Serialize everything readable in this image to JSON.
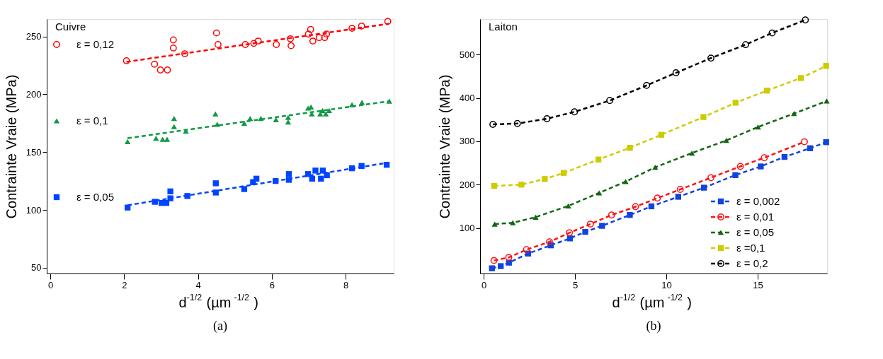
{
  "chart_data": [
    {
      "type": "scatter",
      "title": "Cuivre",
      "xlabel": "d$^{-1/2}$(µm$^{-1/2}$)",
      "ylabel": "Contrainte Vraie (MPa)",
      "xlim": [
        -0.1,
        9.3
      ],
      "ylim": [
        45,
        265
      ],
      "xticks": [
        0,
        2,
        4,
        6,
        8
      ],
      "yticks": [
        50,
        100,
        150,
        200,
        250
      ],
      "legend": "left",
      "annotations": [
        "(a)"
      ],
      "series": [
        {
          "name": "ε =  0,12",
          "marker": "circle",
          "color": "#ff0000",
          "x": [
            2.06,
            2.82,
            2.98,
            3.17,
            3.33,
            3.33,
            3.64,
            4.5,
            4.54,
            5.28,
            5.51,
            5.63,
            6.12,
            6.5,
            6.52,
            6.99,
            7.05,
            7.11,
            7.28,
            7.43,
            7.48,
            8.17,
            8.43,
            9.14
          ],
          "values": [
            229,
            226,
            221,
            221,
            247,
            240,
            235,
            253,
            243,
            243,
            244,
            246,
            243,
            248,
            242,
            252,
            256,
            246,
            249,
            249,
            252,
            257,
            259,
            263
          ]
        },
        {
          "name": "ε = 0,1",
          "marker": "triangle",
          "color": "#119944",
          "x": [
            2.09,
            2.86,
            3.04,
            3.16,
            3.35,
            3.35,
            3.67,
            4.47,
            4.52,
            5.25,
            5.41,
            5.7,
            6.11,
            6.44,
            6.44,
            6.98,
            7.06,
            7.08,
            7.31,
            7.37,
            7.46,
            7.55,
            8.17,
            8.44,
            9.18
          ],
          "values": [
            159,
            162,
            161,
            161,
            179,
            172,
            168,
            183,
            174,
            175,
            179,
            179,
            178,
            180,
            176,
            188,
            189,
            183,
            183,
            186,
            183,
            186,
            191,
            193,
            194
          ]
        },
        {
          "name": "ε = 0,05",
          "marker": "square",
          "color": "#0044ff",
          "x": [
            2.09,
            2.83,
            3.01,
            3.14,
            3.25,
            3.25,
            3.71,
            4.48,
            4.48,
            5.25,
            5.49,
            5.58,
            6.1,
            6.46,
            6.46,
            6.98,
            7.09,
            7.18,
            7.33,
            7.38,
            7.49,
            8.17,
            8.43,
            9.11
          ],
          "values": [
            102,
            107,
            106,
            106,
            116,
            110,
            112,
            123,
            115,
            118,
            124,
            127,
            125,
            131,
            126,
            131,
            127,
            134,
            127,
            134,
            130,
            136,
            138,
            139
          ]
        },
        {
          "type": "line",
          "line_style": "dashed",
          "marker": "none",
          "color": "#ff0000",
          "x": [
            2.06,
            9.17
          ],
          "values": [
            228,
            261
          ]
        },
        {
          "type": "line",
          "line_style": "dashed",
          "marker": "none",
          "color": "#119944",
          "x": [
            2.09,
            9.18
          ],
          "values": [
            162,
            194
          ]
        },
        {
          "type": "line",
          "line_style": "dashed",
          "marker": "none",
          "color": "#0044ff",
          "x": [
            2.09,
            9.17
          ],
          "values": [
            104,
            141
          ]
        }
      ]
    },
    {
      "type": "line",
      "title": "Laiton",
      "xlabel": "d$^{-1/2}$(µm$^{-1/2}$)",
      "ylabel": "Contrainte Vraie (MPa)",
      "xlim": [
        -0.2,
        18.8
      ],
      "ylim": [
        -5,
        582
      ],
      "xticks": [
        0,
        5,
        10,
        15
      ],
      "yticks": [
        100,
        200,
        300,
        400,
        500
      ],
      "legend": "bottom right",
      "annotations": [
        "(b)"
      ],
      "series": [
        {
          "name": "ε = 0,002",
          "marker": "square",
          "line_style": "dashed",
          "color": "#1144dd",
          "x": [
            0.45,
            0.93,
            1.38,
            2.43,
            3.67,
            4.72,
            5.56,
            6.48,
            8.0,
            9.18,
            10.65,
            12.06,
            13.78,
            15.17,
            16.47,
            17.87,
            18.75
          ],
          "values": [
            7,
            12,
            20,
            41,
            60,
            76,
            91,
            105,
            130,
            150,
            172,
            193,
            222,
            242,
            264,
            284,
            298
          ]
        },
        {
          "name": "ε = 0,01",
          "marker": "circle",
          "line_style": "dashed",
          "color": "#ff1111",
          "x": [
            0.56,
            1.37,
            2.34,
            3.6,
            4.69,
            5.84,
            7.0,
            8.31,
            9.51,
            10.76,
            12.44,
            14.05,
            15.36,
            17.56
          ],
          "values": [
            25,
            32,
            50,
            68,
            89,
            109,
            130,
            149,
            169,
            189,
            216,
            242,
            262,
            299
          ]
        },
        {
          "name": "ε = 0,05",
          "marker": "triangle",
          "line_style": "dashed",
          "color": "#116611",
          "x": [
            0.6,
            1.59,
            2.84,
            4.63,
            6.32,
            7.77,
            9.39,
            11.4,
            13.28,
            15.02,
            16.99,
            18.78
          ],
          "values": [
            109,
            112,
            125,
            151,
            181,
            207,
            240,
            273,
            302,
            333,
            364,
            393
          ]
        },
        {
          "name": "ε =0,1",
          "marker": "square",
          "line_style": "dashed",
          "color": "#cccc00",
          "x": [
            0.57,
            2.06,
            3.34,
            4.38,
            6.28,
            8.0,
            9.72,
            12.03,
            13.79,
            15.51,
            17.37,
            18.75
          ],
          "values": [
            197,
            200,
            213,
            227,
            258,
            285,
            315,
            356,
            389,
            417,
            446,
            474
          ]
        },
        {
          "name": "ε = 0,2",
          "marker": "circle",
          "line_style": "dashed",
          "color": "#000000",
          "x": [
            0.5,
            1.84,
            3.46,
            4.97,
            6.9,
            8.92,
            10.53,
            12.44,
            14.34,
            15.79,
            17.61
          ],
          "values": [
            339,
            341,
            352,
            368,
            394,
            429,
            458,
            492,
            523,
            550,
            580
          ]
        }
      ]
    }
  ]
}
